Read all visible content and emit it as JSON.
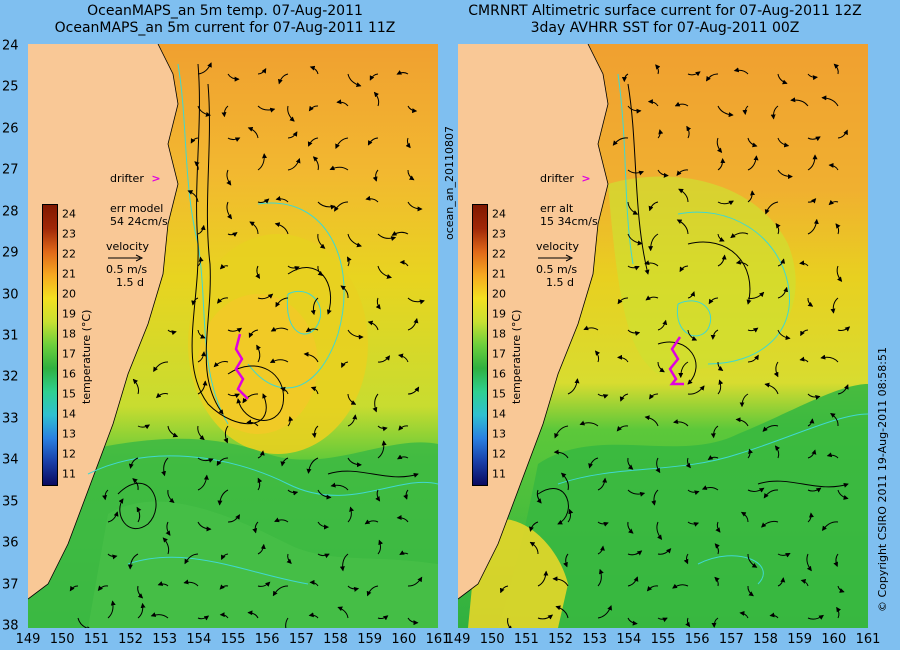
{
  "left_panel": {
    "title_line1": "OceanMAPS_an 5m temp. 07-Aug-2011",
    "title_line2": "OceanMAPS_an 5m current for 07-Aug-2011 11Z",
    "drifter_label": "drifter",
    "err_label": "err model",
    "err_value": "54 24cm/s",
    "velocity_label": "velocity",
    "velocity_scale": "0.5 m/s",
    "velocity_time": "1.5 d"
  },
  "right_panel": {
    "title_line1": "CMRNRT Altimetric surface current for 07-Aug-2011 12Z",
    "title_line2": "3day AVHRR SST for 07-Aug-2011 00Z",
    "drifter_label": "drifter",
    "err_label": "err alt",
    "err_value": "15 34cm/s",
    "velocity_label": "velocity",
    "velocity_scale": "0.5 m/s",
    "velocity_time": "1.5 d"
  },
  "middle_side_label": "ocean_an_20110807",
  "right_side_label": "© Copyright CSIRO 2011   19-Aug-2011 08:58:51",
  "colorbar": {
    "label": "temperature (°C)",
    "ticks": [
      "24",
      "23",
      "22",
      "21",
      "20",
      "19",
      "18",
      "17",
      "16",
      "15",
      "14",
      "13",
      "12",
      "11"
    ]
  },
  "lat_ticks": [
    "24",
    "25",
    "26",
    "27",
    "28",
    "29",
    "30",
    "31",
    "32",
    "33",
    "34",
    "35",
    "36",
    "37",
    "38"
  ],
  "lon_ticks": [
    "149",
    "150",
    "151",
    "152",
    "153",
    "154",
    "155",
    "156",
    "157",
    "158",
    "159",
    "160",
    "161"
  ],
  "colors": {
    "background": "#7fbff0",
    "land": "#f9c896",
    "warm": "#f0a030",
    "mid": "#e8d020",
    "cool": "#30b040",
    "drifter": "#e000e0",
    "contour": "#40d8d0"
  }
}
